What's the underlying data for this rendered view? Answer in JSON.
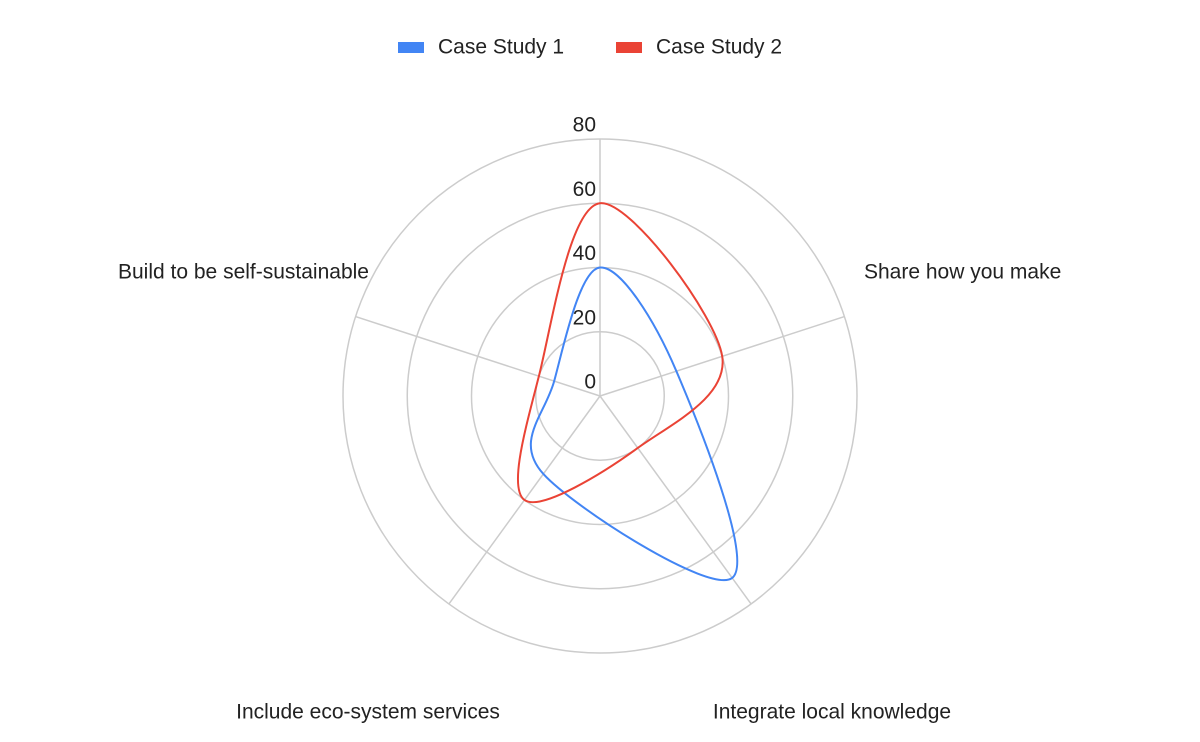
{
  "chart_data": {
    "type": "radar",
    "categories": [
      null,
      "Share how you make",
      "Integrate local knowledge",
      "Include eco-system services",
      "Build to be self-sustainable"
    ],
    "series": [
      {
        "name": "Case Study 1",
        "color": "#4285f4",
        "values": [
          40,
          25,
          70,
          30,
          15
        ]
      },
      {
        "name": "Case Study 2",
        "color": "#ea4335",
        "values": [
          60,
          40,
          20,
          40,
          20
        ]
      }
    ],
    "ylim": [
      0,
      80
    ],
    "yticks": [
      0,
      20,
      40,
      60,
      80
    ],
    "grid": true,
    "legend": "top"
  }
}
